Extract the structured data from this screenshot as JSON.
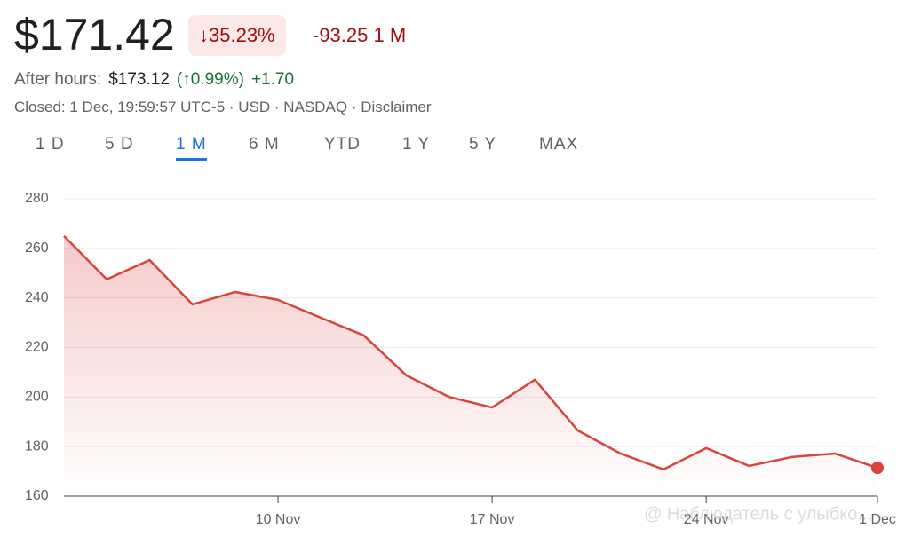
{
  "header": {
    "price": "$171.42",
    "change_pct": "35.23%",
    "change": "-93.25",
    "period": "1 M",
    "after_hours_label": "After hours:",
    "after_hours_price": "$173.12",
    "after_hours_pct": "0.99%",
    "after_hours_change": "+1.70",
    "info": [
      "Closed: 1 Dec, 19:59:57 UTC-5",
      "USD",
      "NASDAQ",
      "Disclaimer"
    ]
  },
  "tabs": [
    "1 D",
    "5 D",
    "1 M",
    "6 M",
    "YTD",
    "1 Y",
    "5 Y",
    "MAX"
  ],
  "active_tab": 2,
  "chart_data": {
    "type": "line",
    "color": "#d9443b",
    "categories": [
      null,
      null,
      null,
      null,
      null,
      "10 Nov",
      null,
      null,
      null,
      null,
      "17 Nov",
      null,
      null,
      null,
      null,
      "24 Nov",
      null,
      null,
      null,
      "1 Dec"
    ],
    "values": [
      265,
      247.5,
      255.3,
      237.4,
      242.4,
      239.2,
      232,
      224.9,
      208.7,
      200,
      195.8,
      207,
      186.5,
      177.2,
      170.8,
      179.4,
      172.2,
      175.8,
      177.2,
      171.42
    ],
    "ylim": [
      160,
      280
    ],
    "yticks": [
      160,
      180,
      200,
      220,
      240,
      260,
      280
    ],
    "grid": true
  },
  "watermark": "@ Наблюдатель с улыбко..."
}
